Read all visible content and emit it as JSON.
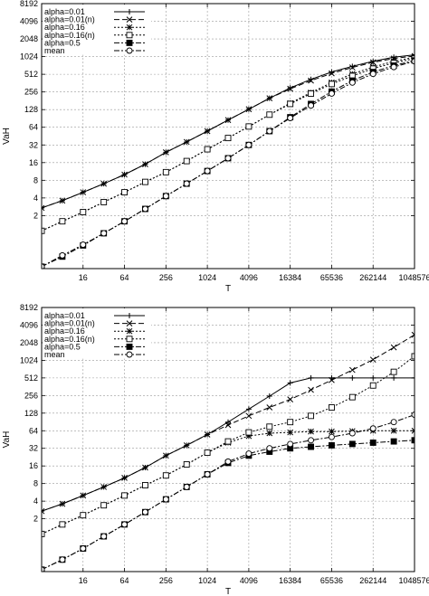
{
  "chart_data": [
    {
      "type": "line",
      "title": "",
      "xlabel": "T",
      "ylabel": "VaH",
      "xscale": "log2",
      "yscale": "log2",
      "xlim": [
        4,
        1048576
      ],
      "ylim": [
        0.25,
        8192
      ],
      "xticks": [
        16,
        64,
        256,
        1024,
        4096,
        16384,
        65536,
        262144,
        1048576
      ],
      "yticks": [
        2,
        4,
        8,
        16,
        32,
        64,
        128,
        256,
        512,
        1024,
        2048,
        4096,
        8192
      ],
      "grid": true,
      "legend_position": "top-left",
      "series": [
        {
          "name": "alpha=0.01",
          "marker": "plus",
          "dash": "solid",
          "x": [
            4,
            8,
            16,
            32,
            64,
            128,
            256,
            512,
            1024,
            2048,
            4096,
            8192,
            16384,
            32768,
            65536,
            131072,
            262144,
            524288,
            1048576
          ],
          "y": [
            2.7,
            3.6,
            5.0,
            7.0,
            10.0,
            15.0,
            24,
            36,
            55,
            85,
            130,
            200,
            300,
            420,
            560,
            700,
            850,
            1000,
            1100
          ]
        },
        {
          "name": "alpha=0.01(n)",
          "marker": "x",
          "dash": "dashed",
          "x": [
            4,
            8,
            16,
            32,
            64,
            128,
            256,
            512,
            1024,
            2048,
            4096,
            8192,
            16384,
            32768,
            65536,
            131072,
            262144,
            524288,
            1048576
          ],
          "y": [
            2.7,
            3.6,
            5.0,
            7.0,
            10.0,
            15.0,
            24,
            36,
            55,
            85,
            130,
            200,
            290,
            400,
            530,
            670,
            820,
            950,
            1050
          ]
        },
        {
          "name": "alpha=0.16",
          "marker": "star",
          "dash": "dotted",
          "x": [
            4,
            8,
            16,
            32,
            64,
            128,
            256,
            512,
            1024,
            2048,
            4096,
            8192,
            16384,
            32768,
            65536,
            131072,
            262144,
            524288,
            1048576
          ],
          "y": [
            1.1,
            1.6,
            2.3,
            3.4,
            5.0,
            7.5,
            11,
            17,
            27,
            42,
            66,
            105,
            165,
            250,
            370,
            520,
            680,
            850,
            1000
          ]
        },
        {
          "name": "alpha=0.16(n)",
          "marker": "square-open",
          "dash": "dotted",
          "x": [
            4,
            8,
            16,
            32,
            64,
            128,
            256,
            512,
            1024,
            2048,
            4096,
            8192,
            16384,
            32768,
            65536,
            131072,
            262144,
            524288,
            1048576
          ],
          "y": [
            1.1,
            1.6,
            2.3,
            3.4,
            5.0,
            7.5,
            11,
            17,
            27,
            42,
            66,
            105,
            160,
            240,
            350,
            480,
            640,
            800,
            950
          ]
        },
        {
          "name": "alpha=0.5",
          "marker": "square-filled",
          "dash": "dashdot",
          "x": [
            4,
            8,
            16,
            32,
            64,
            128,
            256,
            512,
            1024,
            2048,
            4096,
            8192,
            16384,
            32768,
            65536,
            131072,
            262144,
            524288,
            1048576
          ],
          "y": [
            0.27,
            0.4,
            0.62,
            1.0,
            1.6,
            2.6,
            4.3,
            7.0,
            11.5,
            19,
            32,
            55,
            95,
            160,
            260,
            400,
            560,
            720,
            880
          ]
        },
        {
          "name": "mean",
          "marker": "circle-open",
          "dash": "dashdot",
          "x": [
            4,
            8,
            16,
            32,
            64,
            128,
            256,
            512,
            1024,
            2048,
            4096,
            8192,
            16384,
            32768,
            65536,
            131072,
            262144,
            524288,
            1048576
          ],
          "y": [
            0.27,
            0.42,
            0.64,
            1.0,
            1.6,
            2.6,
            4.3,
            7.0,
            11.5,
            19,
            32,
            55,
            92,
            150,
            240,
            370,
            520,
            680,
            850
          ]
        }
      ]
    },
    {
      "type": "line",
      "title": "",
      "xlabel": "T",
      "ylabel": "VaH",
      "xscale": "log2",
      "yscale": "log2",
      "xlim": [
        4,
        1048576
      ],
      "ylim": [
        0.25,
        8192
      ],
      "xticks": [
        16,
        64,
        256,
        1024,
        4096,
        16384,
        65536,
        262144,
        1048576
      ],
      "yticks": [
        2,
        4,
        8,
        16,
        32,
        64,
        128,
        256,
        512,
        1024,
        2048,
        4096,
        8192
      ],
      "grid": true,
      "legend_position": "top-left",
      "series": [
        {
          "name": "alpha=0.01",
          "marker": "plus",
          "dash": "solid",
          "x": [
            4,
            8,
            16,
            32,
            64,
            128,
            256,
            512,
            1024,
            2048,
            4096,
            8192,
            16384,
            32768,
            65536,
            131072,
            262144,
            524288,
            1048576
          ],
          "y": [
            2.7,
            3.6,
            5.0,
            7.0,
            10.0,
            15.0,
            24,
            36,
            55,
            90,
            150,
            250,
            420,
            512,
            512,
            512,
            512,
            512,
            512
          ]
        },
        {
          "name": "alpha=0.01(n)",
          "marker": "x",
          "dash": "dashed",
          "x": [
            4,
            8,
            16,
            32,
            64,
            128,
            256,
            512,
            1024,
            2048,
            4096,
            8192,
            16384,
            32768,
            65536,
            131072,
            262144,
            524288,
            1048576
          ],
          "y": [
            2.7,
            3.6,
            5.0,
            7.0,
            10.0,
            15.0,
            24,
            36,
            55,
            80,
            115,
            160,
            220,
            320,
            470,
            700,
            1050,
            1700,
            2800
          ]
        },
        {
          "name": "alpha=0.16",
          "marker": "star",
          "dash": "dotted",
          "x": [
            4,
            8,
            16,
            32,
            64,
            128,
            256,
            512,
            1024,
            2048,
            4096,
            8192,
            16384,
            32768,
            65536,
            131072,
            262144,
            524288,
            1048576
          ],
          "y": [
            1.1,
            1.6,
            2.3,
            3.4,
            5.0,
            7.5,
            11,
            17,
            27,
            40,
            52,
            58,
            60,
            62,
            62,
            63,
            64,
            64,
            64
          ]
        },
        {
          "name": "alpha=0.16(n)",
          "marker": "square-open",
          "dash": "dotted",
          "x": [
            4,
            8,
            16,
            32,
            64,
            128,
            256,
            512,
            1024,
            2048,
            4096,
            8192,
            16384,
            32768,
            65536,
            131072,
            262144,
            524288,
            1048576
          ],
          "y": [
            1.1,
            1.6,
            2.3,
            3.4,
            5.0,
            7.5,
            11,
            17,
            27,
            42,
            60,
            75,
            90,
            115,
            160,
            240,
            380,
            650,
            1200
          ]
        },
        {
          "name": "alpha=0.5",
          "marker": "square-filled",
          "dash": "dashdot",
          "x": [
            4,
            8,
            16,
            32,
            64,
            128,
            256,
            512,
            1024,
            2048,
            4096,
            8192,
            16384,
            32768,
            65536,
            131072,
            262144,
            524288,
            1048576
          ],
          "y": [
            0.27,
            0.4,
            0.62,
            1.0,
            1.6,
            2.6,
            4.3,
            7.0,
            11.5,
            18,
            24,
            28,
            32,
            34,
            36,
            38,
            40,
            42,
            44
          ]
        },
        {
          "name": "mean",
          "marker": "circle-open",
          "dash": "dashdot",
          "x": [
            4,
            8,
            16,
            32,
            64,
            128,
            256,
            512,
            1024,
            2048,
            4096,
            8192,
            16384,
            32768,
            65536,
            131072,
            262144,
            524288,
            1048576
          ],
          "y": [
            0.27,
            0.4,
            0.62,
            1.0,
            1.6,
            2.6,
            4.3,
            7.0,
            11.5,
            19,
            26,
            32,
            38,
            44,
            50,
            58,
            70,
            90,
            120
          ]
        }
      ]
    }
  ]
}
